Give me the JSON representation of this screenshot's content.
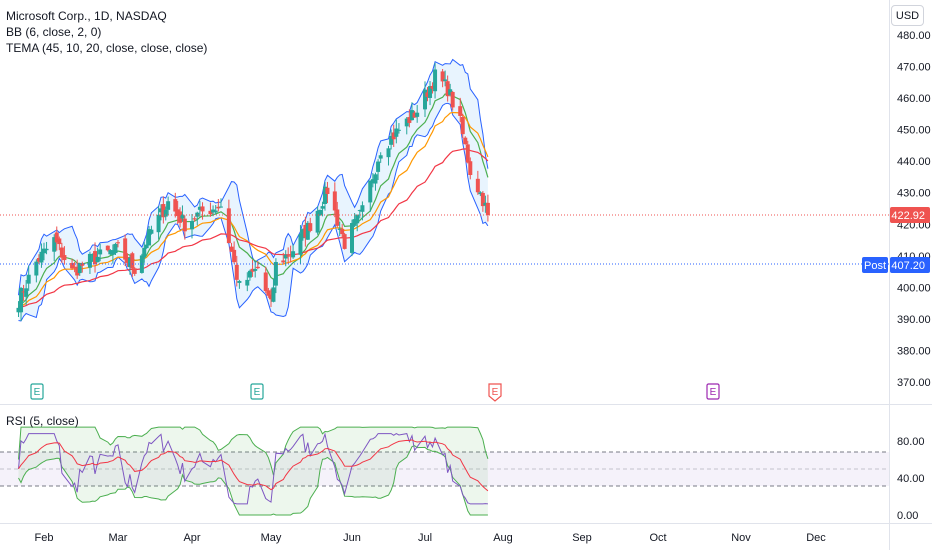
{
  "header": {
    "symbol_title": "Microsoft Corp., 1D, NASDAQ",
    "indicator_bb": "BB (6, close, 2, 0)",
    "indicator_tema": "TEMA (45, 10, 20, close, close, close)",
    "rsi_title": "RSI (5, close)",
    "currency": "USD"
  },
  "price_tags": {
    "last_price": "422.92",
    "post_label": "Post",
    "post_price": "407.20"
  },
  "earnings_markers": [
    {
      "label": "E",
      "color": "#26a69a"
    },
    {
      "label": "E",
      "color": "#26a69a"
    },
    {
      "label": "E",
      "color": "#ef5350"
    },
    {
      "label": "E",
      "color": "#9c27b0"
    }
  ],
  "colors": {
    "up": "#26a69a",
    "down": "#ef5350",
    "bb_band": "#2962ff",
    "bb_fill": "#2196f3",
    "tema_red": "#f23645",
    "tema_orange": "#ff9800",
    "tema_green": "#4caf50",
    "rsi_line": "#7e57c2",
    "rsi_ma": "#f23645",
    "rsi_band_line": "#4caf50",
    "post_blue": "#2962ff"
  },
  "chart_data": [
    {
      "type": "candlestick",
      "title": "Microsoft Corp., 1D, NASDAQ",
      "x_labels": [
        "Feb",
        "Mar",
        "Apr",
        "May",
        "Jun",
        "Jul",
        "Aug",
        "Sep",
        "Oct",
        "Nov",
        "Dec"
      ],
      "y_ticks": [
        370,
        380,
        390,
        400,
        410,
        420,
        430,
        440,
        450,
        460,
        470,
        480
      ],
      "ylim": [
        365,
        482
      ],
      "close_points": [
        {
          "x": "Jan 22",
          "y": 396
        },
        {
          "x": "Jan 29",
          "y": 408
        },
        {
          "x": "Feb 5",
          "y": 415
        },
        {
          "x": "Feb 12",
          "y": 405
        },
        {
          "x": "Feb 20",
          "y": 409
        },
        {
          "x": "Mar 1",
          "y": 412
        },
        {
          "x": "Mar 8",
          "y": 406
        },
        {
          "x": "Mar 15",
          "y": 418
        },
        {
          "x": "Mar 22",
          "y": 427
        },
        {
          "x": "Mar 29",
          "y": 420
        },
        {
          "x": "Apr 5",
          "y": 424
        },
        {
          "x": "Apr 12",
          "y": 426
        },
        {
          "x": "Apr 19",
          "y": 400
        },
        {
          "x": "Apr 26",
          "y": 406
        },
        {
          "x": "May 1",
          "y": 394
        },
        {
          "x": "May 3",
          "y": 407
        },
        {
          "x": "May 10",
          "y": 412
        },
        {
          "x": "May 17",
          "y": 420
        },
        {
          "x": "May 24",
          "y": 431
        },
        {
          "x": "May 31",
          "y": 414
        },
        {
          "x": "Jun 7",
          "y": 424
        },
        {
          "x": "Jun 14",
          "y": 444
        },
        {
          "x": "Jun 21",
          "y": 450
        },
        {
          "x": "Jun 28",
          "y": 456
        },
        {
          "x": "Jul 5",
          "y": 467
        },
        {
          "x": "Jul 10",
          "y": 463
        },
        {
          "x": "Jul 15",
          "y": 452
        },
        {
          "x": "Jul 19",
          "y": 437
        },
        {
          "x": "Jul 24",
          "y": 428
        },
        {
          "x": "Jul 26",
          "y": 422.92
        }
      ],
      "last_price": 422.92,
      "post_price": 407.2,
      "overlays": [
        "BB (6, close, 2, 0)",
        "TEMA (45, 10, 20, close, close, close)"
      ]
    },
    {
      "type": "line",
      "title": "RSI (5, close)",
      "y_ticks": [
        0,
        40,
        80
      ],
      "ylim": [
        -8,
        100
      ],
      "guide_levels": [
        30,
        50,
        70
      ]
    }
  ]
}
